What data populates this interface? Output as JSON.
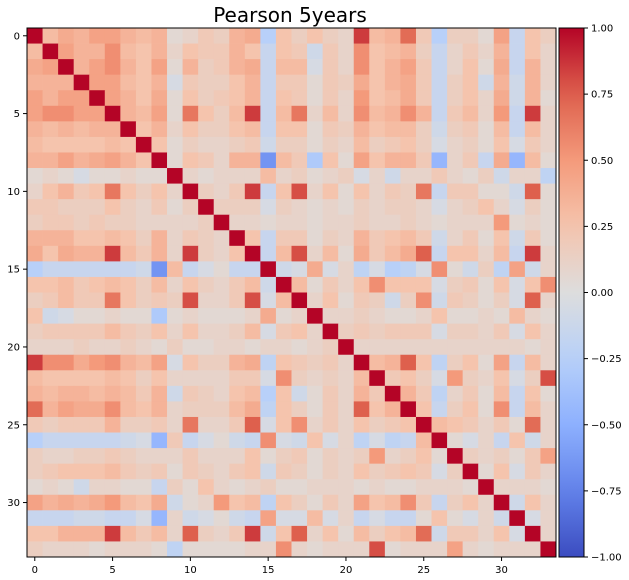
{
  "chart_data": {
    "type": "heatmap",
    "title": "Pearson 5years",
    "size": 34,
    "x_ticks": [
      0,
      5,
      10,
      15,
      20,
      25,
      30
    ],
    "y_ticks": [
      0,
      5,
      10,
      15,
      20,
      25,
      30
    ],
    "colorbar": {
      "cmap": "coolwarm",
      "vmin": -1.0,
      "vmax": 1.0,
      "tick_values": [
        1.0,
        0.75,
        0.5,
        0.25,
        0.0,
        -0.25,
        -0.5,
        -0.75,
        -1.0
      ],
      "tick_labels": [
        "1.00",
        "0.75",
        "0.50",
        "0.25",
        "0.00",
        "−0.25",
        "−0.50",
        "−0.75",
        "−1.00"
      ]
    },
    "rows": [
      [
        1.0,
        0.3,
        0.4,
        0.35,
        0.45,
        0.45,
        0.35,
        0.3,
        0.35,
        0.05,
        0.1,
        0.2,
        0.15,
        0.35,
        0.4,
        -0.25,
        0.25,
        0.15,
        0.25,
        0.15,
        0.1,
        0.85,
        0.3,
        0.35,
        0.7,
        0.2,
        -0.25,
        0.15,
        0.15,
        0.05,
        0.45,
        -0.15,
        0.25,
        0.15
      ],
      [
        0.3,
        1.0,
        0.45,
        0.35,
        0.35,
        0.55,
        0.3,
        0.25,
        0.35,
        0.1,
        0.25,
        0.2,
        0.2,
        0.35,
        0.25,
        -0.15,
        0.25,
        0.2,
        -0.1,
        0.2,
        0.1,
        0.55,
        0.25,
        0.3,
        0.35,
        0.15,
        -0.15,
        0.1,
        0.2,
        0.1,
        0.35,
        -0.15,
        0.25,
        0.1
      ],
      [
        0.4,
        0.45,
        1.0,
        0.35,
        0.45,
        0.55,
        0.35,
        0.25,
        0.45,
        0.05,
        0.35,
        0.15,
        0.2,
        0.35,
        0.4,
        -0.15,
        0.3,
        0.3,
        -0.05,
        0.2,
        0.1,
        0.55,
        0.25,
        0.35,
        0.45,
        0.2,
        -0.15,
        0.1,
        0.25,
        0.05,
        0.4,
        -0.15,
        0.35,
        0.1
      ],
      [
        0.35,
        0.35,
        0.35,
        1.0,
        0.45,
        0.45,
        0.3,
        0.25,
        0.35,
        -0.05,
        0.2,
        0.15,
        0.15,
        0.25,
        0.35,
        -0.15,
        0.2,
        0.2,
        0.05,
        0.2,
        0.15,
        0.4,
        0.25,
        0.35,
        0.4,
        0.2,
        -0.15,
        0.15,
        0.25,
        -0.1,
        0.35,
        -0.1,
        0.35,
        0.1
      ],
      [
        0.45,
        0.35,
        0.45,
        0.45,
        1.0,
        0.45,
        0.35,
        0.25,
        0.4,
        0.05,
        0.25,
        0.15,
        0.2,
        0.25,
        0.35,
        -0.15,
        0.25,
        0.2,
        0.05,
        0.2,
        0.1,
        0.5,
        0.25,
        0.3,
        0.4,
        0.2,
        -0.15,
        0.15,
        0.25,
        0.1,
        0.4,
        -0.1,
        0.35,
        0.05
      ],
      [
        0.45,
        0.55,
        0.55,
        0.45,
        0.45,
        1.0,
        0.35,
        0.3,
        0.45,
        0.05,
        0.65,
        0.25,
        0.15,
        0.3,
        0.85,
        -0.15,
        0.3,
        0.65,
        0.1,
        0.3,
        0.1,
        0.55,
        0.3,
        0.35,
        0.55,
        0.35,
        -0.15,
        0.2,
        0.3,
        0.1,
        0.5,
        -0.15,
        0.85,
        0.1
      ],
      [
        0.35,
        0.3,
        0.35,
        0.3,
        0.35,
        0.35,
        1.0,
        0.25,
        0.35,
        0.1,
        0.25,
        0.15,
        0.15,
        0.25,
        0.3,
        -0.15,
        0.25,
        0.25,
        0.05,
        0.2,
        0.15,
        0.35,
        0.25,
        0.3,
        0.3,
        0.15,
        -0.1,
        0.15,
        0.2,
        0.05,
        0.3,
        -0.15,
        0.3,
        0.1
      ],
      [
        0.3,
        0.25,
        0.25,
        0.25,
        0.25,
        0.3,
        0.25,
        1.0,
        0.25,
        0.05,
        0.15,
        0.1,
        0.1,
        0.15,
        0.2,
        -0.1,
        0.15,
        0.15,
        0.05,
        0.15,
        0.1,
        0.3,
        0.15,
        0.2,
        0.25,
        0.15,
        -0.05,
        0.1,
        0.15,
        0.05,
        0.25,
        -0.05,
        0.2,
        0.1
      ],
      [
        0.35,
        0.35,
        0.45,
        0.35,
        0.4,
        0.45,
        0.35,
        0.25,
        1.0,
        0.05,
        0.25,
        0.2,
        0.1,
        0.35,
        0.35,
        -0.65,
        0.3,
        0.2,
        -0.3,
        0.25,
        0.05,
        0.45,
        0.25,
        0.35,
        0.35,
        0.2,
        -0.45,
        0.1,
        0.2,
        -0.15,
        0.4,
        -0.45,
        0.3,
        0.05
      ],
      [
        0.05,
        0.1,
        0.05,
        -0.05,
        0.05,
        0.05,
        0.1,
        0.05,
        0.05,
        1.0,
        0.1,
        0.05,
        0.1,
        0.1,
        0.1,
        0.3,
        0.1,
        0.15,
        0.05,
        0.1,
        0.15,
        -0.05,
        0.1,
        -0.1,
        0.1,
        0.1,
        0.2,
        0.1,
        0.05,
        0.15,
        -0.1,
        0.1,
        0.1,
        -0.2
      ],
      [
        0.1,
        0.25,
        0.35,
        0.2,
        0.25,
        0.65,
        0.25,
        0.15,
        0.25,
        0.1,
        1.0,
        0.15,
        0.1,
        0.2,
        0.85,
        -0.15,
        0.25,
        0.8,
        0.1,
        0.25,
        0.05,
        0.25,
        0.1,
        0.2,
        0.15,
        0.65,
        -0.15,
        0.2,
        0.2,
        0.05,
        0.05,
        -0.1,
        0.75,
        0.05
      ],
      [
        0.2,
        0.2,
        0.15,
        0.15,
        0.15,
        0.25,
        0.15,
        0.1,
        0.2,
        0.05,
        0.15,
        1.0,
        0.15,
        0.15,
        0.15,
        -0.05,
        0.15,
        0.1,
        0.05,
        0.1,
        0.05,
        0.15,
        0.1,
        0.15,
        0.15,
        0.1,
        -0.05,
        0.1,
        0.15,
        0.25,
        0.1,
        -0.05,
        0.15,
        0.05
      ],
      [
        0.15,
        0.2,
        0.2,
        0.15,
        0.2,
        0.15,
        0.15,
        0.1,
        0.1,
        0.1,
        0.1,
        0.15,
        1.0,
        0.1,
        0.1,
        0.05,
        0.1,
        0.1,
        0.05,
        0.1,
        0.1,
        0.15,
        0.1,
        0.1,
        0.15,
        0.1,
        0.05,
        0.1,
        0.1,
        0.1,
        0.5,
        0.05,
        0.1,
        0.05
      ],
      [
        0.35,
        0.35,
        0.35,
        0.25,
        0.25,
        0.3,
        0.25,
        0.15,
        0.35,
        0.1,
        0.2,
        0.15,
        0.1,
        1.0,
        0.25,
        -0.15,
        0.2,
        0.2,
        0.05,
        0.15,
        0.1,
        0.35,
        0.2,
        0.25,
        0.3,
        0.2,
        -0.1,
        0.1,
        0.2,
        0.05,
        0.25,
        -0.1,
        0.2,
        0.05
      ],
      [
        0.4,
        0.25,
        0.4,
        0.35,
        0.35,
        0.85,
        0.3,
        0.2,
        0.35,
        0.1,
        0.85,
        0.15,
        0.1,
        0.25,
        1.0,
        -0.15,
        0.3,
        0.8,
        0.1,
        0.3,
        0.05,
        0.4,
        0.2,
        0.3,
        0.4,
        0.75,
        -0.15,
        0.25,
        0.25,
        0.1,
        0.3,
        -0.15,
        0.85,
        0.1
      ],
      [
        -0.25,
        -0.15,
        -0.15,
        -0.15,
        -0.15,
        -0.15,
        -0.15,
        -0.1,
        -0.65,
        0.3,
        -0.15,
        -0.05,
        0.05,
        -0.15,
        -0.15,
        1.0,
        -0.1,
        -0.05,
        0.4,
        -0.05,
        0.1,
        -0.2,
        -0.05,
        -0.25,
        -0.2,
        -0.05,
        0.55,
        0.05,
        -0.1,
        0.15,
        -0.2,
        0.45,
        -0.1,
        0.1
      ],
      [
        0.25,
        0.25,
        0.3,
        0.2,
        0.25,
        0.3,
        0.25,
        0.15,
        0.3,
        0.1,
        0.25,
        0.15,
        0.1,
        0.2,
        0.3,
        -0.1,
        1.0,
        0.3,
        0.05,
        0.2,
        0.1,
        0.25,
        0.55,
        0.25,
        0.25,
        0.25,
        -0.05,
        0.15,
        0.2,
        0.05,
        0.25,
        -0.05,
        0.25,
        0.55
      ],
      [
        0.15,
        0.2,
        0.3,
        0.2,
        0.2,
        0.65,
        0.25,
        0.15,
        0.2,
        0.15,
        0.8,
        0.1,
        0.1,
        0.2,
        0.8,
        -0.05,
        0.3,
        1.0,
        0.1,
        0.25,
        0.05,
        0.2,
        0.15,
        -0.1,
        0.15,
        0.55,
        -0.1,
        0.2,
        0.15,
        0.05,
        0.15,
        -0.05,
        0.75,
        0.1
      ],
      [
        0.25,
        -0.1,
        -0.05,
        0.05,
        0.05,
        0.1,
        0.05,
        0.05,
        -0.3,
        0.05,
        0.1,
        0.05,
        0.05,
        0.05,
        0.1,
        0.4,
        0.05,
        0.1,
        1.0,
        0.1,
        0.1,
        0.15,
        0.1,
        0.05,
        0.05,
        0.1,
        0.25,
        0.05,
        0.05,
        0.1,
        0.05,
        0.3,
        0.1,
        0.05
      ],
      [
        0.15,
        0.2,
        0.2,
        0.2,
        0.2,
        0.3,
        0.2,
        0.15,
        0.25,
        0.1,
        0.25,
        0.1,
        0.1,
        0.15,
        0.3,
        -0.05,
        0.2,
        0.25,
        0.1,
        1.0,
        0.15,
        0.2,
        0.15,
        0.2,
        0.2,
        0.2,
        -0.05,
        0.15,
        0.15,
        0.1,
        0.2,
        -0.05,
        0.25,
        0.1
      ],
      [
        0.1,
        0.1,
        0.1,
        0.15,
        0.1,
        0.1,
        0.15,
        0.1,
        0.05,
        0.15,
        0.05,
        0.05,
        0.1,
        0.1,
        0.05,
        0.1,
        0.1,
        0.05,
        0.1,
        0.15,
        1.0,
        0.1,
        0.1,
        0.1,
        0.1,
        0.1,
        0.1,
        0.1,
        0.1,
        0.1,
        0.1,
        0.1,
        0.05,
        0.1
      ],
      [
        0.85,
        0.55,
        0.55,
        0.4,
        0.5,
        0.55,
        0.35,
        0.3,
        0.45,
        -0.05,
        0.25,
        0.15,
        0.15,
        0.35,
        0.4,
        -0.2,
        0.25,
        0.2,
        0.15,
        0.2,
        0.1,
        1.0,
        0.3,
        0.35,
        0.75,
        0.25,
        -0.2,
        0.15,
        0.25,
        0.05,
        0.45,
        -0.15,
        0.3,
        0.1
      ],
      [
        0.3,
        0.25,
        0.25,
        0.25,
        0.25,
        0.3,
        0.25,
        0.15,
        0.25,
        0.1,
        0.1,
        0.1,
        0.1,
        0.2,
        0.2,
        -0.05,
        0.55,
        0.15,
        0.1,
        0.15,
        0.1,
        0.3,
        1.0,
        0.2,
        0.25,
        0.15,
        -0.05,
        0.5,
        0.15,
        0.1,
        0.25,
        -0.05,
        0.15,
        0.8
      ],
      [
        0.35,
        0.3,
        0.35,
        0.35,
        0.3,
        0.35,
        0.3,
        0.2,
        0.35,
        -0.1,
        0.2,
        0.15,
        0.1,
        0.25,
        0.3,
        -0.25,
        0.25,
        -0.1,
        0.05,
        0.2,
        0.1,
        0.35,
        0.2,
        1.0,
        0.35,
        0.2,
        -0.2,
        0.1,
        0.2,
        0.05,
        0.3,
        -0.15,
        0.25,
        0.05
      ],
      [
        0.7,
        0.35,
        0.45,
        0.4,
        0.4,
        0.55,
        0.3,
        0.25,
        0.35,
        0.1,
        0.15,
        0.15,
        0.15,
        0.3,
        0.4,
        -0.2,
        0.25,
        0.15,
        0.05,
        0.2,
        0.1,
        0.75,
        0.25,
        0.35,
        1.0,
        0.25,
        -0.15,
        0.15,
        0.25,
        0.05,
        0.55,
        -0.15,
        0.3,
        0.1
      ],
      [
        0.2,
        0.15,
        0.2,
        0.2,
        0.2,
        0.35,
        0.15,
        0.15,
        0.2,
        0.1,
        0.65,
        0.1,
        0.1,
        0.2,
        0.75,
        -0.05,
        0.25,
        0.55,
        0.1,
        0.2,
        0.1,
        0.25,
        0.15,
        0.2,
        0.25,
        1.0,
        0.3,
        0.25,
        0.2,
        0.1,
        0.2,
        0.05,
        0.7,
        0.1
      ],
      [
        -0.25,
        -0.15,
        -0.15,
        -0.15,
        -0.15,
        -0.15,
        -0.1,
        -0.05,
        -0.45,
        0.2,
        -0.15,
        -0.05,
        0.05,
        -0.1,
        -0.15,
        0.55,
        -0.05,
        -0.1,
        0.25,
        -0.05,
        0.1,
        -0.2,
        -0.05,
        -0.2,
        -0.15,
        0.3,
        1.0,
        0.05,
        -0.05,
        0.1,
        -0.15,
        0.25,
        -0.1,
        0.1
      ],
      [
        0.15,
        0.1,
        0.1,
        0.15,
        0.15,
        0.2,
        0.15,
        0.1,
        0.1,
        0.1,
        0.2,
        0.1,
        0.1,
        0.1,
        0.25,
        0.05,
        0.15,
        0.2,
        0.05,
        0.15,
        0.1,
        0.15,
        0.5,
        0.1,
        0.15,
        0.25,
        0.05,
        1.0,
        0.15,
        0.1,
        0.15,
        0.05,
        0.2,
        0.45
      ],
      [
        0.15,
        0.2,
        0.25,
        0.25,
        0.25,
        0.3,
        0.2,
        0.15,
        0.2,
        0.05,
        0.2,
        0.15,
        0.1,
        0.2,
        0.25,
        -0.1,
        0.2,
        0.15,
        0.05,
        0.15,
        0.1,
        0.25,
        0.15,
        0.2,
        0.25,
        0.2,
        -0.05,
        0.15,
        1.0,
        0.05,
        0.25,
        -0.05,
        0.2,
        0.1
      ],
      [
        0.05,
        0.1,
        0.05,
        -0.1,
        0.1,
        0.1,
        0.05,
        0.05,
        -0.15,
        0.15,
        0.05,
        0.25,
        0.1,
        0.05,
        0.1,
        0.15,
        0.05,
        0.05,
        0.1,
        0.1,
        0.1,
        0.05,
        0.1,
        0.05,
        0.05,
        0.1,
        0.1,
        0.1,
        0.05,
        1.0,
        0.1,
        0.1,
        0.1,
        0.05
      ],
      [
        0.45,
        0.35,
        0.4,
        0.35,
        0.4,
        0.5,
        0.3,
        0.25,
        0.4,
        -0.1,
        0.05,
        0.1,
        0.5,
        0.25,
        0.3,
        -0.2,
        0.25,
        0.15,
        0.05,
        0.2,
        0.1,
        0.45,
        0.25,
        0.3,
        0.55,
        0.2,
        -0.15,
        0.15,
        0.25,
        0.1,
        1.0,
        -0.1,
        0.25,
        0.1
      ],
      [
        -0.15,
        -0.15,
        -0.15,
        -0.1,
        -0.1,
        -0.15,
        -0.15,
        -0.05,
        -0.45,
        0.1,
        -0.1,
        -0.05,
        0.05,
        -0.1,
        -0.15,
        0.45,
        -0.05,
        -0.05,
        0.3,
        -0.05,
        0.1,
        -0.15,
        -0.05,
        -0.15,
        -0.15,
        0.05,
        0.25,
        0.05,
        -0.05,
        0.1,
        -0.1,
        1.0,
        -0.05,
        0.1
      ],
      [
        0.25,
        0.25,
        0.35,
        0.35,
        0.35,
        0.85,
        0.3,
        0.2,
        0.3,
        0.1,
        0.75,
        0.15,
        0.1,
        0.2,
        0.85,
        -0.1,
        0.25,
        0.75,
        0.1,
        0.25,
        0.05,
        0.3,
        0.15,
        0.25,
        0.3,
        0.7,
        -0.1,
        0.2,
        0.2,
        0.1,
        0.25,
        -0.05,
        1.0,
        0.1
      ],
      [
        0.15,
        0.1,
        0.1,
        0.1,
        0.05,
        0.1,
        0.1,
        0.1,
        0.05,
        -0.2,
        0.05,
        0.05,
        0.05,
        0.05,
        0.1,
        0.1,
        0.55,
        0.1,
        0.05,
        0.1,
        0.1,
        0.1,
        0.8,
        0.05,
        0.1,
        0.1,
        0.1,
        0.45,
        0.1,
        0.05,
        0.1,
        0.1,
        0.1,
        1.0
      ]
    ]
  }
}
